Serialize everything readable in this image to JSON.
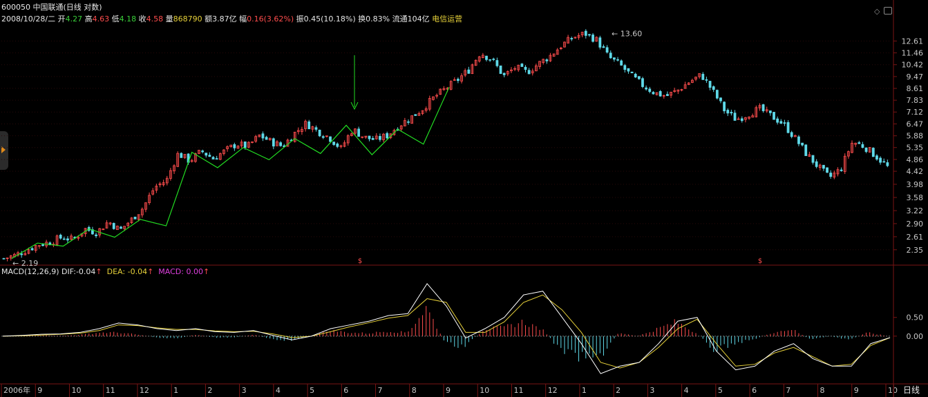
{
  "header": {
    "stock_code": "600050",
    "stock_name": "中国联通",
    "chart_mode": "(日线 对数)",
    "date": "2008/10/28/二",
    "open_label": "开",
    "open": "4.27",
    "high_label": "高",
    "high": "4.63",
    "low_label": "低",
    "low": "4.18",
    "close_label": "收",
    "close": "4.58",
    "volume_label": "量",
    "volume": "868790",
    "amount_label": "额",
    "amount": "3.87亿",
    "change_label": "幅",
    "change": "0.16(3.62%)",
    "amplitude_label": "振",
    "amplitude": "0.45(10.18%)",
    "turnover_label": "换",
    "turnover": "0.83%",
    "float_label": "流通",
    "float_shares": "104亿",
    "sector": "电信运营"
  },
  "macd_header": {
    "name": "MACD(12,26,9)",
    "dif_label": "DIF:",
    "dif": "-0.04",
    "dea_label": "DEA:",
    "dea": "-0.04",
    "macd_label": "MACD:",
    "macd": "0.00",
    "up_arrow": "↑"
  },
  "markers": {
    "high_mark": "13.60",
    "low_mark": "2.19",
    "signal": "$"
  },
  "period_label": "日线",
  "colors": {
    "up": "#ff4d4d",
    "down": "#5fd9e8",
    "zigzag": "#22dd22",
    "dif": "#ffffff",
    "dea": "#e8d23a",
    "arrow": "#22dd22"
  },
  "chart_data": [
    {
      "type": "candlestick",
      "title": "600050 中国联通 (日线 对数)",
      "yscale": "log",
      "y_ticks": [
        "12.61",
        "11.46",
        "10.42",
        "9.47",
        "8.61",
        "7.83",
        "7.12",
        "6.47",
        "5.88",
        "5.35",
        "4.86",
        "4.42",
        "3.98",
        "3.58",
        "3.22",
        "2.90",
        "2.61",
        "2.35"
      ],
      "x_tick_labels": [
        "2006年",
        "9",
        "10",
        "11",
        "12",
        "1",
        "2",
        "3",
        "4",
        "5",
        "6",
        "7",
        "8",
        "9",
        "10",
        "11",
        "12",
        "1",
        "2",
        "3",
        "4",
        "5",
        "6",
        "7",
        "8",
        "9",
        "10"
      ],
      "ylim": [
        2.1,
        14.2
      ],
      "price_path": [
        2.19,
        2.25,
        2.35,
        2.45,
        2.5,
        2.6,
        2.55,
        2.78,
        2.7,
        2.95,
        2.75,
        3.0,
        3.3,
        3.9,
        4.1,
        5.1,
        4.8,
        5.2,
        4.9,
        5.2,
        5.5,
        5.4,
        5.9,
        5.6,
        5.4,
        6.0,
        6.5,
        6.1,
        5.8,
        5.3,
        6.2,
        5.8,
        5.7,
        5.9,
        6.4,
        6.8,
        7.3,
        8.0,
        8.6,
        9.2,
        10.0,
        11.5,
        10.8,
        9.5,
        10.2,
        9.8,
        10.5,
        11.2,
        12.2,
        13.0,
        13.4,
        12.7,
        11.1,
        10.4,
        9.5,
        8.8,
        8.3,
        8.1,
        8.5,
        9.1,
        9.6,
        8.4,
        7.2,
        6.7,
        7.0,
        7.3,
        6.9,
        6.5,
        5.8,
        5.1,
        4.6,
        4.2,
        4.5,
        5.6,
        5.4,
        5.0,
        4.58
      ],
      "zigzag": [
        2.19,
        2.48,
        2.42,
        2.78,
        2.6,
        3.0,
        2.85,
        5.15,
        4.55,
        5.35,
        4.85,
        5.75,
        5.1,
        6.4,
        5.05,
        6.2,
        5.5,
        8.7
      ],
      "annotations": [
        "13.60",
        "2.19"
      ]
    },
    {
      "type": "bar+line",
      "title": "MACD(12,26,9)",
      "y_ticks": [
        "0.50",
        "0.00"
      ],
      "ylim": [
        -1.2,
        1.6
      ],
      "dif": [
        0.0,
        0.02,
        0.05,
        0.06,
        0.1,
        0.2,
        0.35,
        0.3,
        0.2,
        0.15,
        0.2,
        0.12,
        0.1,
        0.15,
        0.02,
        -0.1,
        0.0,
        0.2,
        0.3,
        0.4,
        0.55,
        0.6,
        1.4,
        0.8,
        -0.05,
        0.2,
        0.5,
        1.1,
        1.2,
        0.5,
        -0.2,
        -1.0,
        -0.8,
        -0.7,
        -0.2,
        0.4,
        0.5,
        -0.4,
        -0.9,
        -0.8,
        -0.4,
        -0.2,
        -0.6,
        -0.8,
        -0.8,
        -0.2,
        -0.04
      ],
      "dea": [
        0.0,
        0.01,
        0.03,
        0.05,
        0.08,
        0.15,
        0.3,
        0.28,
        0.22,
        0.18,
        0.18,
        0.14,
        0.12,
        0.13,
        0.06,
        -0.04,
        0.0,
        0.12,
        0.25,
        0.36,
        0.48,
        0.55,
        1.0,
        0.9,
        0.1,
        0.1,
        0.38,
        0.9,
        1.1,
        0.7,
        0.1,
        -0.7,
        -0.85,
        -0.7,
        -0.3,
        0.2,
        0.45,
        -0.2,
        -0.8,
        -0.75,
        -0.45,
        -0.3,
        -0.55,
        -0.8,
        -0.75,
        -0.25,
        -0.04
      ],
      "histogram": [
        0,
        0.01,
        0.02,
        0.01,
        0.04,
        0.1,
        0.1,
        0.04,
        -0.04,
        -0.06,
        0.04,
        -0.04,
        -0.04,
        0.04,
        -0.08,
        -0.12,
        0.0,
        0.16,
        0.1,
        0.08,
        0.14,
        0.1,
        0.8,
        -0.2,
        -0.3,
        0.2,
        0.24,
        0.4,
        0.2,
        -0.4,
        -0.6,
        -0.6,
        0.1,
        0.0,
        0.2,
        0.4,
        0.1,
        -0.4,
        -0.2,
        -0.1,
        0.1,
        0.2,
        -0.1,
        0.0,
        -0.1,
        0.1,
        0.0
      ]
    }
  ]
}
